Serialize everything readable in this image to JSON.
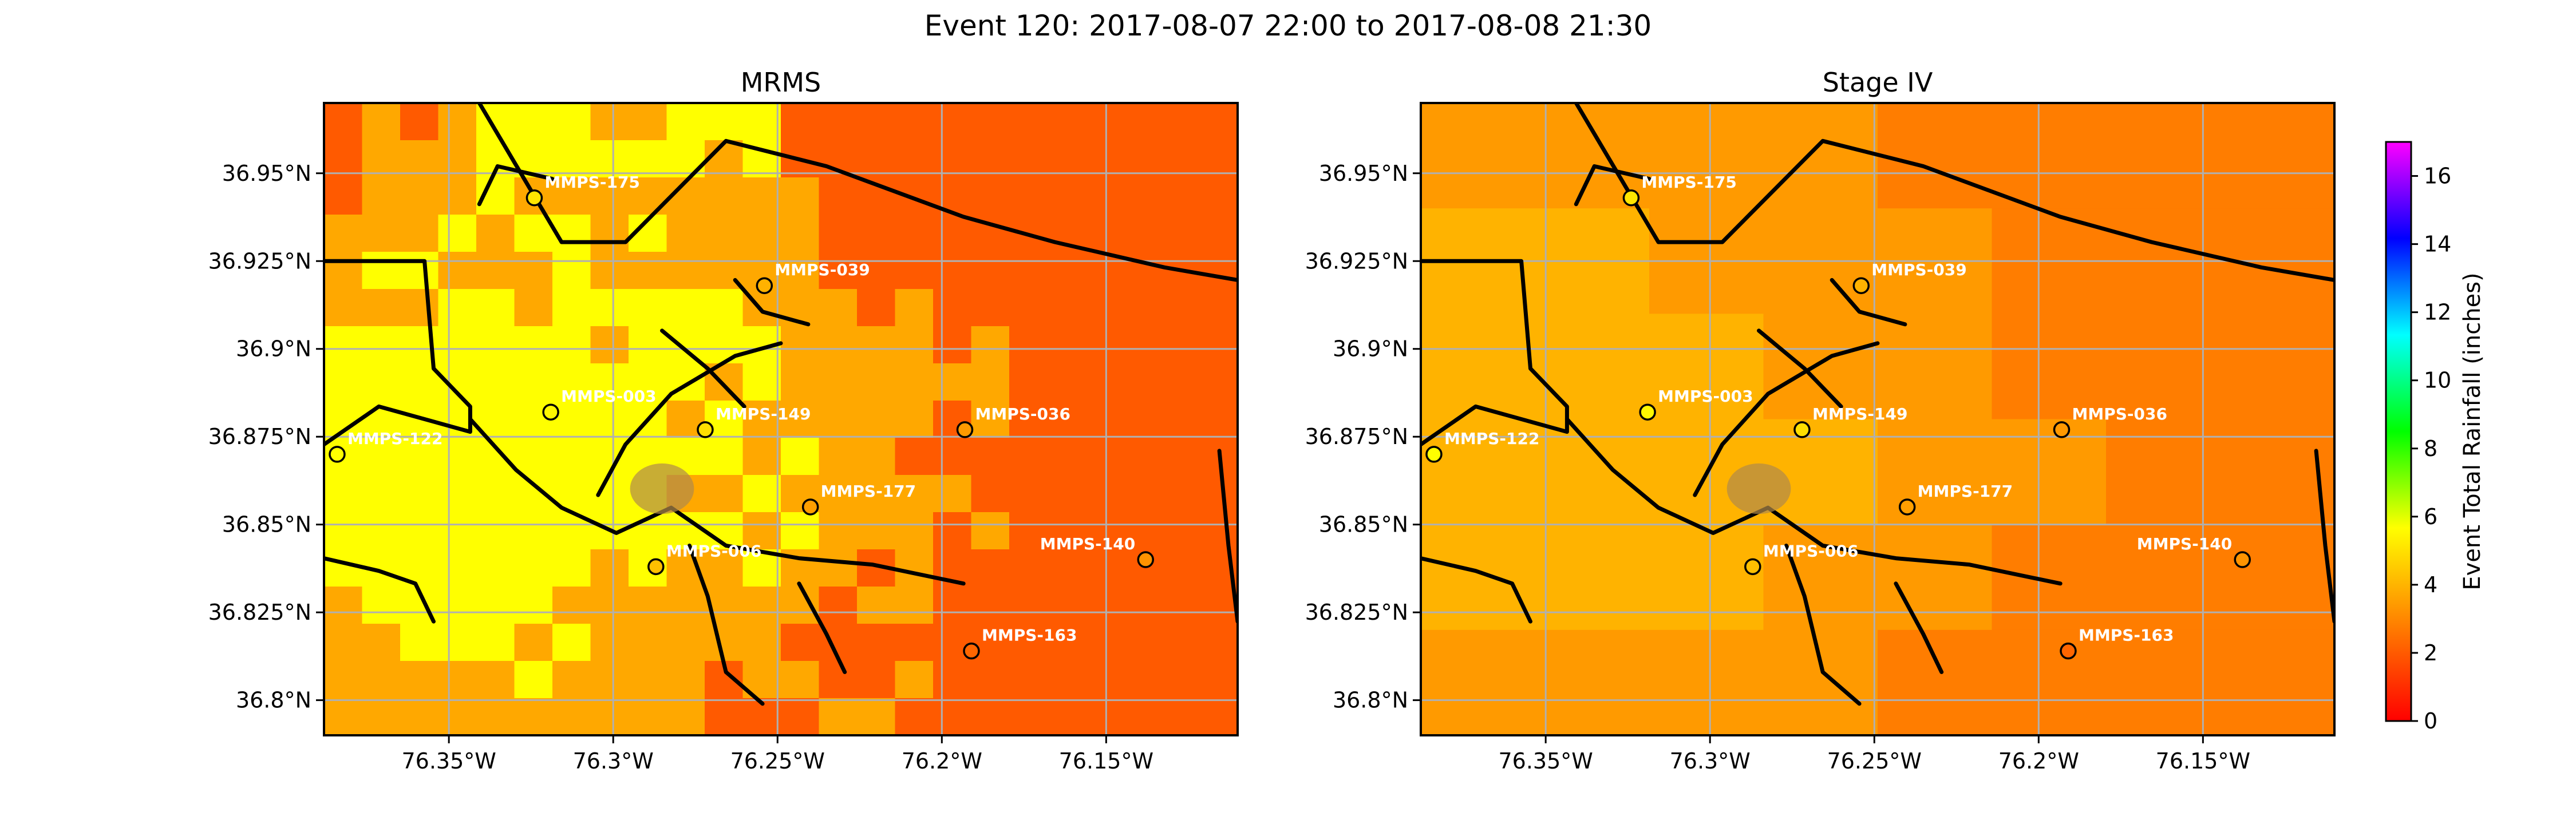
{
  "figure": {
    "title": "Event 120: 2017-08-07 22:00 to 2017-08-08 21:30"
  },
  "chart_data": [
    {
      "type": "heatmap",
      "title": "MRMS",
      "xlim": [
        -76.388,
        -76.11
      ],
      "ylim": [
        36.79,
        36.97
      ],
      "x_ticks": [
        -76.35,
        -76.3,
        -76.25,
        -76.2,
        -76.15
      ],
      "x_tick_labels": [
        "76.35°W",
        "76.3°W",
        "76.25°W",
        "76.2°W",
        "76.15°W"
      ],
      "y_ticks": [
        36.8,
        36.825,
        36.85,
        36.875,
        36.9,
        36.925,
        36.95
      ],
      "y_tick_labels": [
        "36.8°N",
        "36.825°N",
        "36.85°N",
        "36.875°N",
        "36.9°N",
        "36.925°N",
        "36.95°N"
      ],
      "grid": true,
      "value_pattern": "variable",
      "colors": {
        "high": "#ffff00",
        "mid": "#ffa800",
        "low": "#ff5a00"
      },
      "stations": [
        {
          "name": "MMPS-175",
          "lon": -76.324,
          "lat": 36.943,
          "value": 3.6
        },
        {
          "name": "MMPS-039",
          "lon": -76.254,
          "lat": 36.918,
          "value": 2.8
        },
        {
          "name": "MMPS-003",
          "lon": -76.319,
          "lat": 36.882,
          "value": 3.9
        },
        {
          "name": "MMPS-149",
          "lon": -76.272,
          "lat": 36.877,
          "value": 3.5
        },
        {
          "name": "MMPS-036",
          "lon": -76.193,
          "lat": 36.877,
          "value": 2.4
        },
        {
          "name": "MMPS-122",
          "lon": -76.384,
          "lat": 36.87,
          "value": 4.3
        },
        {
          "name": "MMPS-177",
          "lon": -76.24,
          "lat": 36.855,
          "value": 2.5
        },
        {
          "name": "MMPS-006",
          "lon": -76.287,
          "lat": 36.838,
          "value": 3.0
        },
        {
          "name": "MMPS-140",
          "lon": -76.138,
          "lat": 36.84,
          "value": 2.3
        },
        {
          "name": "MMPS-163",
          "lon": -76.191,
          "lat": 36.814,
          "value": 1.6
        }
      ]
    },
    {
      "type": "heatmap",
      "title": "Stage IV",
      "xlim": [
        -76.388,
        -76.11
      ],
      "ylim": [
        36.79,
        36.97
      ],
      "x_ticks": [
        -76.35,
        -76.3,
        -76.25,
        -76.2,
        -76.15
      ],
      "x_tick_labels": [
        "76.35°W",
        "76.3°W",
        "76.25°W",
        "76.2°W",
        "76.15°W"
      ],
      "y_ticks": [
        36.8,
        36.825,
        36.85,
        36.875,
        36.9,
        36.925,
        36.95
      ],
      "y_tick_labels": [
        "36.8°N",
        "36.825°N",
        "36.85°N",
        "36.875°N",
        "36.9°N",
        "36.925°N",
        "36.95°N"
      ],
      "grid": true,
      "value_pattern": "smooth",
      "colors": {
        "high": "#ffb300",
        "mid": "#ff9a00",
        "low": "#ff7d00"
      },
      "stations": [
        {
          "name": "MMPS-175",
          "lon": -76.324,
          "lat": 36.943,
          "value": 3.6
        },
        {
          "name": "MMPS-039",
          "lon": -76.254,
          "lat": 36.918,
          "value": 2.8
        },
        {
          "name": "MMPS-003",
          "lon": -76.319,
          "lat": 36.882,
          "value": 3.9
        },
        {
          "name": "MMPS-149",
          "lon": -76.272,
          "lat": 36.877,
          "value": 3.5
        },
        {
          "name": "MMPS-036",
          "lon": -76.193,
          "lat": 36.877,
          "value": 2.4
        },
        {
          "name": "MMPS-122",
          "lon": -76.384,
          "lat": 36.87,
          "value": 4.3
        },
        {
          "name": "MMPS-177",
          "lon": -76.24,
          "lat": 36.855,
          "value": 2.5
        },
        {
          "name": "MMPS-006",
          "lon": -76.287,
          "lat": 36.838,
          "value": 3.0
        },
        {
          "name": "MMPS-140",
          "lon": -76.138,
          "lat": 36.84,
          "value": 2.3
        },
        {
          "name": "MMPS-163",
          "lon": -76.191,
          "lat": 36.814,
          "value": 1.6
        }
      ]
    }
  ],
  "colorbar": {
    "label": "Event Total Rainfall (inches)",
    "range": [
      0,
      17
    ],
    "ticks": [
      0,
      2,
      4,
      6,
      8,
      10,
      12,
      14,
      16
    ],
    "tick_labels": [
      "0",
      "2",
      "4",
      "6",
      "8",
      "10",
      "12",
      "14",
      "16"
    ],
    "colors": [
      "#ff0000",
      "#ff8000",
      "#ffff00",
      "#00ff00",
      "#00ffff",
      "#0000ff",
      "#ff00ff"
    ]
  }
}
